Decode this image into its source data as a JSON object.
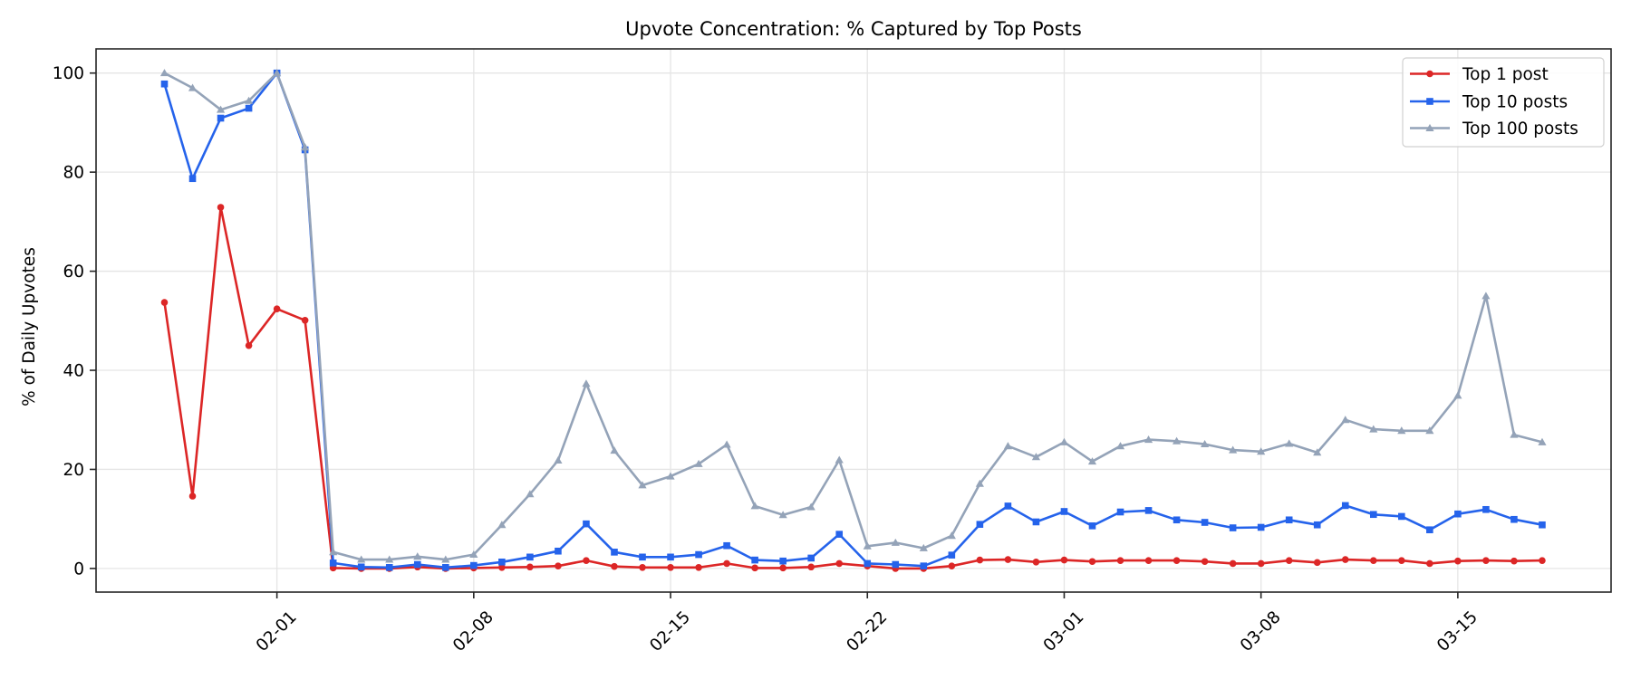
{
  "chart_data": {
    "type": "line",
    "title": "Upvote Concentration: % Captured by Top Posts",
    "xlabel": "",
    "ylabel": "% of Daily Upvotes",
    "ylim": [
      -4.8,
      104.9
    ],
    "yticks": [
      0,
      20,
      40,
      60,
      80,
      100
    ],
    "xtick_labels": [
      "02-01",
      "02-08",
      "02-15",
      "02-22",
      "03-01",
      "03-08",
      "03-15"
    ],
    "xtick_indices": [
      4,
      11,
      18,
      25,
      32,
      39,
      46
    ],
    "grid": true,
    "legend_position": "upper right",
    "x": [
      "01-28",
      "01-29",
      "01-30",
      "01-31",
      "02-01",
      "02-02",
      "02-03",
      "02-04",
      "02-05",
      "02-06",
      "02-07",
      "02-08",
      "02-09",
      "02-10",
      "02-11",
      "02-12",
      "02-13",
      "02-14",
      "02-15",
      "02-16",
      "02-17",
      "02-18",
      "02-19",
      "02-20",
      "02-21",
      "02-22",
      "02-23",
      "02-24",
      "02-25",
      "02-26",
      "02-27",
      "02-28",
      "03-01",
      "03-02",
      "03-03",
      "03-04",
      "03-05",
      "03-06",
      "03-07",
      "03-08",
      "03-09",
      "03-10",
      "03-11",
      "03-12",
      "03-13",
      "03-14",
      "03-15",
      "03-16",
      "03-17",
      "03-18"
    ],
    "series": [
      {
        "name": "Top 1 post",
        "color": "#dc2626",
        "marker": "circle",
        "values": [
          53.7,
          14.6,
          72.9,
          45.0,
          52.4,
          50.1,
          0.1,
          0.0,
          0.0,
          0.3,
          0.0,
          0.1,
          0.2,
          0.3,
          0.5,
          1.6,
          0.4,
          0.2,
          0.2,
          0.2,
          1.0,
          0.1,
          0.1,
          0.3,
          1.0,
          0.5,
          0.0,
          0.0,
          0.5,
          1.7,
          1.8,
          1.3,
          1.7,
          1.4,
          1.6,
          1.6,
          1.6,
          1.4,
          1.0,
          1.0,
          1.6,
          1.2,
          1.8,
          1.6,
          1.6,
          1.0,
          1.5,
          1.6,
          1.5,
          1.6
        ]
      },
      {
        "name": "Top 10 posts",
        "color": "#2563eb",
        "marker": "square",
        "values": [
          97.8,
          78.7,
          90.9,
          92.9,
          100.0,
          84.5,
          1.1,
          0.3,
          0.2,
          0.8,
          0.2,
          0.6,
          1.3,
          2.3,
          3.5,
          9.0,
          3.3,
          2.3,
          2.3,
          2.8,
          4.6,
          1.7,
          1.5,
          2.1,
          6.9,
          1.0,
          0.8,
          0.5,
          2.7,
          8.9,
          12.6,
          9.4,
          11.5,
          8.6,
          11.4,
          11.7,
          9.8,
          9.3,
          8.2,
          8.3,
          9.8,
          8.8,
          12.7,
          10.9,
          10.5,
          7.8,
          11.0,
          11.9,
          9.9,
          8.8
        ]
      },
      {
        "name": "Top 100 posts",
        "color": "#94a3b8",
        "marker": "triangle",
        "values": [
          100.0,
          97.0,
          92.6,
          94.4,
          100.0,
          85.0,
          3.3,
          1.8,
          1.8,
          2.4,
          1.8,
          2.8,
          8.8,
          15.0,
          21.8,
          37.3,
          23.8,
          16.8,
          18.6,
          21.1,
          25.0,
          12.6,
          10.8,
          12.4,
          21.9,
          4.5,
          5.2,
          4.1,
          6.6,
          17.1,
          24.7,
          22.5,
          25.5,
          21.6,
          24.7,
          26.0,
          25.7,
          25.1,
          23.9,
          23.6,
          25.2,
          23.4,
          30.0,
          28.1,
          27.8,
          27.8,
          34.9,
          55.0,
          27.0,
          25.5
        ]
      }
    ]
  }
}
